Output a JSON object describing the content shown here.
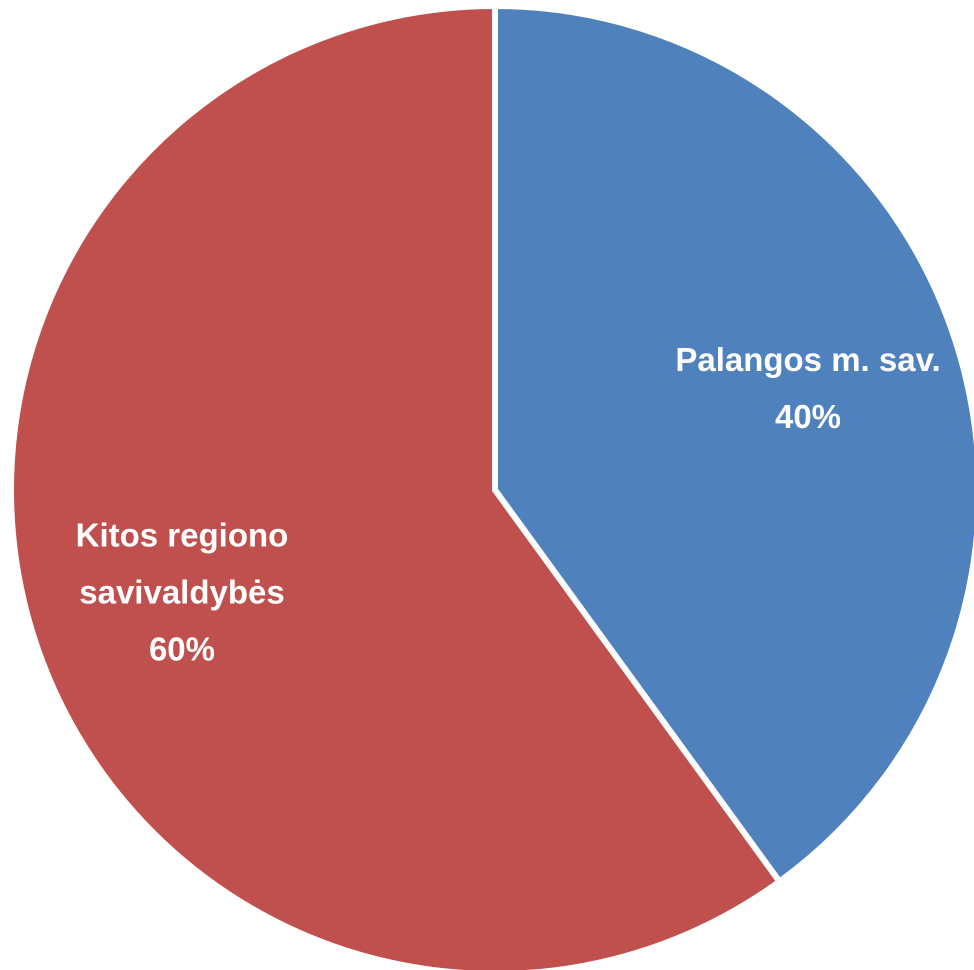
{
  "chart_data": {
    "type": "pie",
    "categories": [
      "Palangos m. sav.",
      "Kitos regiono savivaldybės"
    ],
    "values": [
      40,
      60
    ],
    "value_labels": [
      "40%",
      "60%"
    ],
    "colors": [
      "#4f81bd",
      "#c0504d"
    ]
  }
}
